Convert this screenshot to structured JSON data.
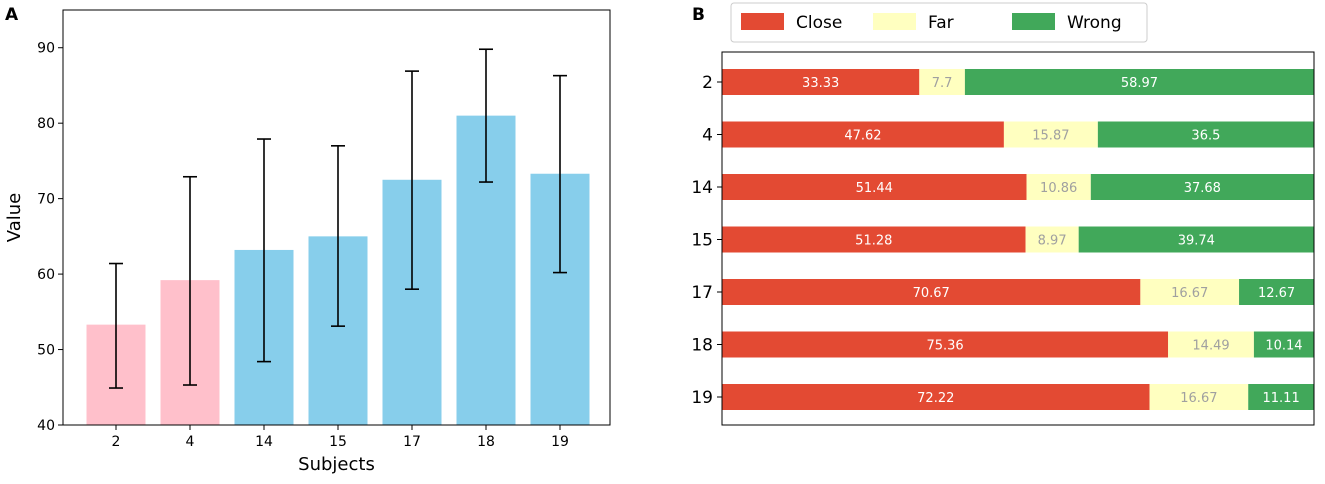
{
  "chart_data": [
    {
      "panel": "A",
      "type": "bar",
      "title": "",
      "xlabel": "Subjects",
      "ylabel": "Value",
      "categories": [
        "2",
        "4",
        "14",
        "15",
        "17",
        "18",
        "19"
      ],
      "values": [
        53.3,
        59.2,
        63.2,
        65.0,
        72.5,
        81.0,
        73.3
      ],
      "error_low": [
        44.9,
        45.3,
        48.4,
        53.1,
        58.0,
        72.2,
        60.2
      ],
      "error_high": [
        61.4,
        72.9,
        77.9,
        77.0,
        86.9,
        89.8,
        86.3
      ],
      "bar_colors": [
        "#ffc0cb",
        "#ffc0cb",
        "#87ceeb",
        "#87ceeb",
        "#87ceeb",
        "#87ceeb",
        "#87ceeb"
      ],
      "ylim": [
        40,
        95
      ],
      "yticks": [
        40,
        50,
        60,
        70,
        80,
        90
      ],
      "grid": false
    },
    {
      "panel": "B",
      "type": "bar",
      "orientation": "horizontal-stacked-percent",
      "title": "",
      "xlabel": "",
      "ylabel": "",
      "categories": [
        "2",
        "4",
        "14",
        "15",
        "17",
        "18",
        "19"
      ],
      "series": [
        {
          "name": "Close",
          "color": "#e34a33",
          "label_color": "#ffffff",
          "values": [
            33.33,
            47.62,
            51.44,
            51.28,
            70.67,
            75.36,
            72.22
          ]
        },
        {
          "name": "Far",
          "color": "#ffffc0",
          "label_color": "#a0a0a0",
          "values": [
            7.7,
            15.87,
            10.86,
            8.97,
            16.67,
            14.49,
            16.67
          ]
        },
        {
          "name": "Wrong",
          "color": "#41a85a",
          "label_color": "#ffffff",
          "values": [
            58.97,
            36.5,
            37.68,
            39.74,
            12.67,
            10.14,
            11.11
          ]
        }
      ],
      "xlim": [
        0,
        100
      ],
      "legend_position": "top",
      "grid": false
    }
  ]
}
